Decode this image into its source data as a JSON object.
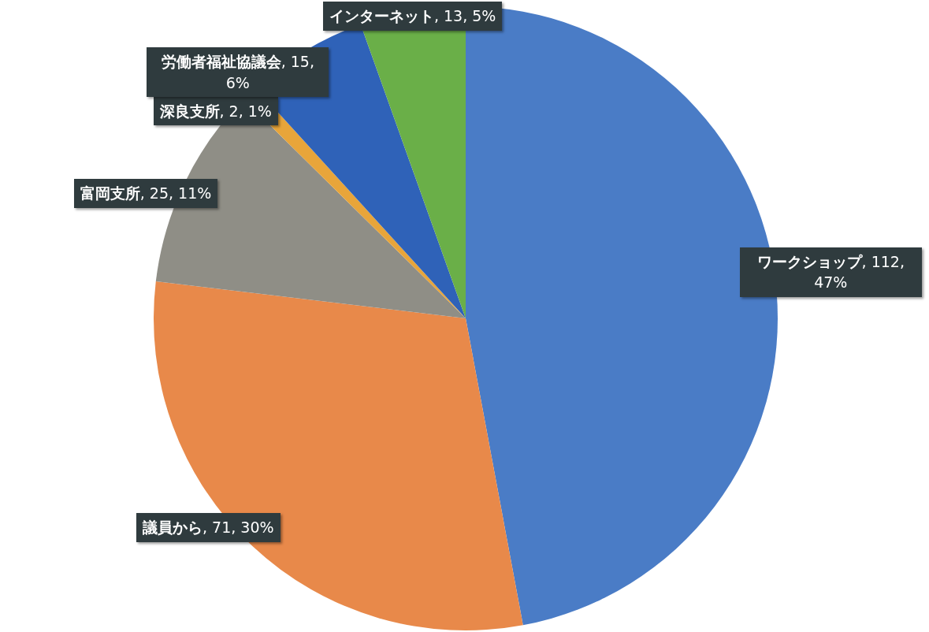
{
  "chart_data": {
    "type": "pie",
    "categories": [
      "ワークショップ",
      "議員から",
      "富岡支所",
      "深良支所",
      "労働者福祉協議会",
      "インターネット"
    ],
    "values": [
      112,
      71,
      25,
      2,
      15,
      13
    ],
    "colors": [
      "#4a7cc6",
      "#e8894a",
      "#8f8e86",
      "#e8a53a",
      "#2f62b8",
      "#6aaf48"
    ],
    "value_labels": [
      ", 112, 47%",
      ", 71, 30%",
      ", 25, 11%",
      ", 2, 1%",
      ", 15, 6%",
      ", 13, 5%"
    ]
  }
}
